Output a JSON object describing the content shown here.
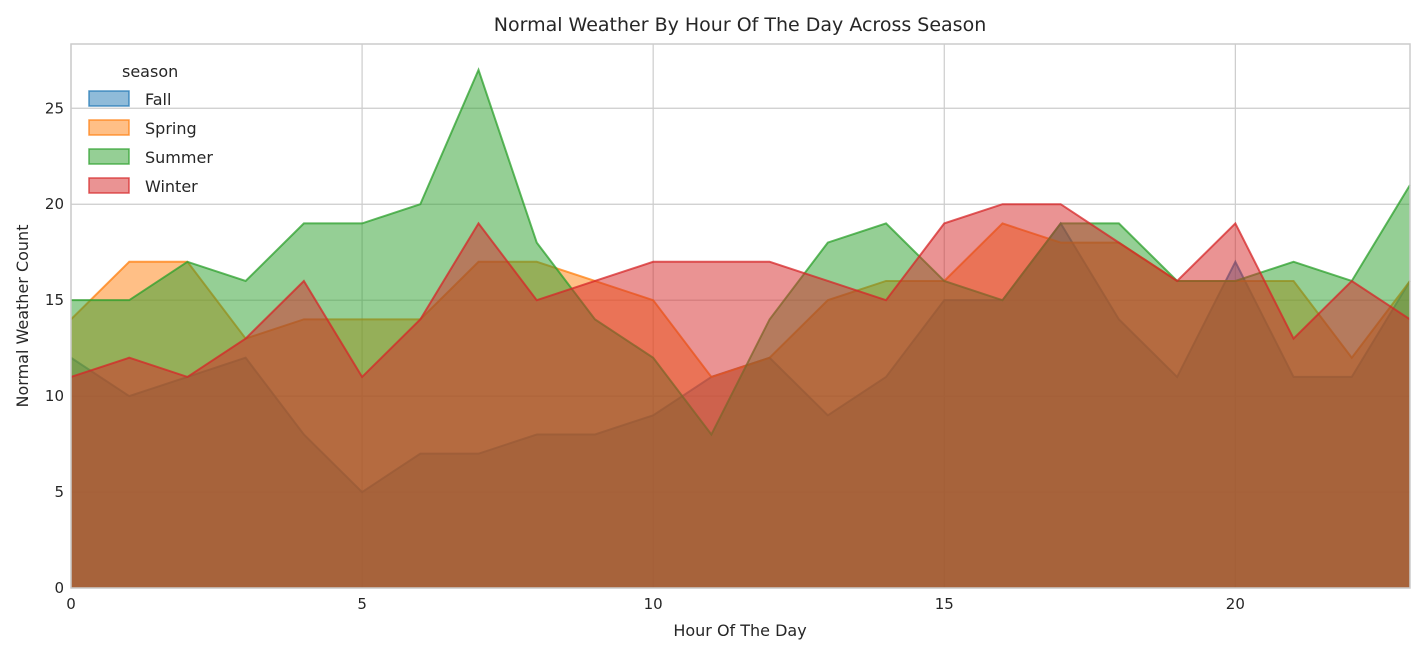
{
  "chart_data": {
    "type": "area",
    "title": "Normal Weather By Hour Of The Day Across Season",
    "xlabel": "Hour Of The Day",
    "ylabel": "Normal Weather Count",
    "xlim": [
      0,
      23
    ],
    "ylim": [
      0,
      28.35
    ],
    "xticks": [
      0,
      5,
      10,
      15,
      20
    ],
    "yticks": [
      0,
      5,
      10,
      15,
      20,
      25
    ],
    "grid": true,
    "stacked": false,
    "legend": {
      "title": "season",
      "placement": "top-left"
    },
    "x": [
      0,
      1,
      2,
      3,
      4,
      5,
      6,
      7,
      8,
      9,
      10,
      11,
      12,
      13,
      14,
      15,
      16,
      17,
      18,
      19,
      20,
      21,
      22,
      23
    ],
    "series": [
      {
        "name": "Fall",
        "color": "#1f77b4",
        "values": [
          12,
          10,
          11,
          12,
          8,
          5,
          7,
          7,
          8,
          8,
          9,
          11,
          12,
          9,
          11,
          15,
          15,
          19,
          14,
          11,
          17,
          11,
          11,
          16
        ]
      },
      {
        "name": "Spring",
        "color": "#ff7f0e",
        "values": [
          14,
          17,
          17,
          13,
          14,
          14,
          14,
          17,
          17,
          16,
          15,
          11,
          12,
          15,
          16,
          16,
          19,
          18,
          18,
          16,
          16,
          16,
          12,
          16
        ]
      },
      {
        "name": "Summer",
        "color": "#2ca02c",
        "values": [
          15,
          15,
          17,
          16,
          19,
          19,
          20,
          27,
          18,
          14,
          12,
          8,
          14,
          18,
          19,
          16,
          15,
          19,
          19,
          16,
          16,
          17,
          16,
          21
        ]
      },
      {
        "name": "Winter",
        "color": "#d62728",
        "values": [
          11,
          12,
          11,
          13,
          16,
          11,
          14,
          19,
          15,
          16,
          17,
          17,
          17,
          16,
          15,
          19,
          20,
          20,
          18,
          16,
          19,
          13,
          16,
          14
        ]
      }
    ]
  }
}
